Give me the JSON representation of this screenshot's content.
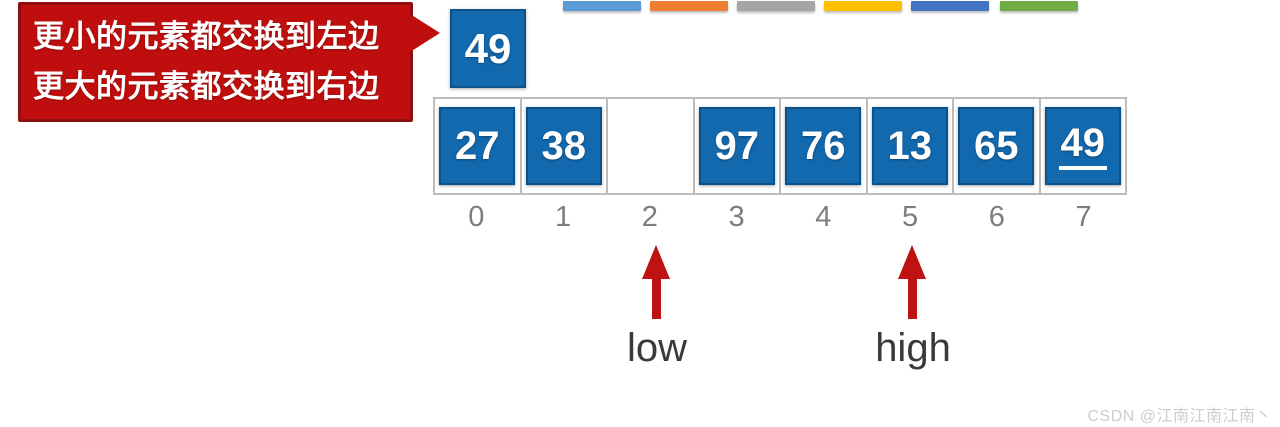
{
  "callout": {
    "line1": "更小的元素都交换到左边",
    "line2": "更大的元素都交换到右边",
    "bg_color": "#c00e0e",
    "border_color": "#8f0f0f"
  },
  "pivot": {
    "value": "49",
    "color": "#1369ae"
  },
  "decoration_bars": [
    {
      "name": "blue",
      "color": "#5b9bd5"
    },
    {
      "name": "orange",
      "color": "#ed7d31"
    },
    {
      "name": "gray",
      "color": "#a5a5a5"
    },
    {
      "name": "gold",
      "color": "#ffc000"
    },
    {
      "name": "dark-blue",
      "color": "#4472c4"
    },
    {
      "name": "green",
      "color": "#70ad47"
    }
  ],
  "array": {
    "cell_color": "#1369ae",
    "cells": [
      {
        "value": "27",
        "underlined": false
      },
      {
        "value": "38",
        "underlined": false
      },
      {
        "value": "",
        "underlined": false
      },
      {
        "value": "97",
        "underlined": false
      },
      {
        "value": "76",
        "underlined": false
      },
      {
        "value": "13",
        "underlined": false
      },
      {
        "value": "65",
        "underlined": false
      },
      {
        "value": "49",
        "underlined": true
      }
    ],
    "indices": [
      "0",
      "1",
      "2",
      "3",
      "4",
      "5",
      "6",
      "7"
    ]
  },
  "pointers": [
    {
      "label": "low",
      "index": 2
    },
    {
      "label": "high",
      "index": 5
    }
  ],
  "arrow_color": "#bf1212",
  "watermark": "CSDN @江南江南江南丶"
}
